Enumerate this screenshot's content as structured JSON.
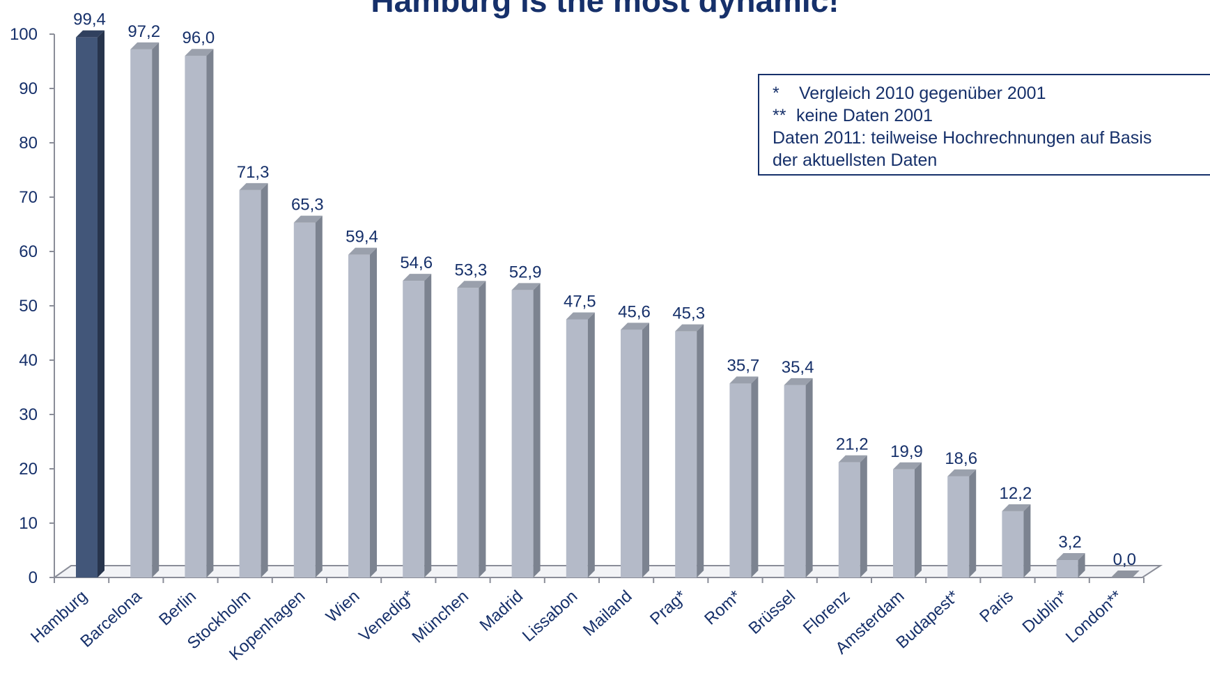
{
  "chart_data": {
    "type": "bar",
    "title": "Hamburg is the most dynamic!",
    "xlabel": "",
    "ylabel": "",
    "ylim": [
      0,
      100
    ],
    "yticks": [
      "0",
      "10",
      "20",
      "30",
      "40",
      "50",
      "60",
      "70",
      "80",
      "90",
      "100"
    ],
    "categories": [
      "Hamburg",
      "Barcelona",
      "Berlin",
      "Stockholm",
      "Kopenhagen",
      "Wien",
      "Venedig*",
      "München",
      "Madrid",
      "Lissabon",
      "Mailand",
      "Prag*",
      "Rom*",
      "Brüssel",
      "Florenz",
      "Amsterdam",
      "Budapest*",
      "Paris",
      "Dublin*",
      "London**"
    ],
    "values": [
      99.4,
      97.2,
      96.0,
      71.3,
      65.3,
      59.4,
      54.6,
      53.3,
      52.9,
      47.5,
      45.6,
      45.3,
      35.7,
      35.4,
      21.2,
      19.9,
      18.6,
      12.2,
      3.2,
      0.0
    ],
    "value_labels": [
      "99,4",
      "97,2",
      "96,0",
      "71,3",
      "65,3",
      "59,4",
      "54,6",
      "53,3",
      "52,9",
      "47,5",
      "45,6",
      "45,3",
      "35,7",
      "35,4",
      "21,2",
      "19,9",
      "18,6",
      "12,2",
      "3,2",
      "0,0"
    ],
    "highlight_index": 0,
    "grid": false,
    "style": "3d-columns"
  },
  "notes": {
    "line1_symbol": "*",
    "line1_text": "Vergleich 2010 gegenüber 2001",
    "line2_symbol": "**",
    "line2_text": "keine Daten 2001",
    "line3_text": "Daten 2011: teilweise Hochrechnungen auf Basis",
    "line4_text": "der aktuellsten Daten"
  },
  "colors": {
    "highlight_front": "#425679",
    "highlight_side": "#27344c",
    "highlight_top": "#30405e",
    "bar_front": "#b4bac8",
    "bar_side": "#7c8390",
    "bar_top": "#9aa0ac",
    "text": "#16306a",
    "axis": "#8a8d98"
  }
}
